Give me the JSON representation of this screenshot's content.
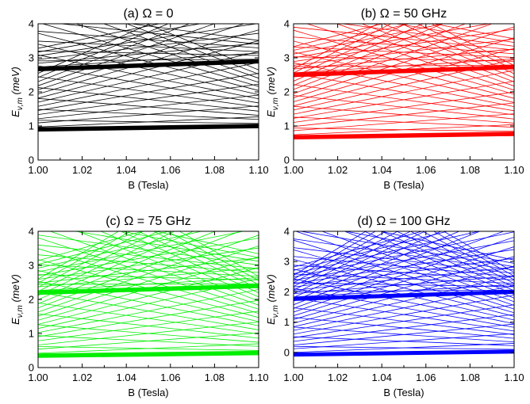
{
  "figure": {
    "background": "#ffffff"
  },
  "chart_data": [
    {
      "panel": "a",
      "type": "line",
      "title": "(a) Ω = 0",
      "xlabel": "B (Tesla)",
      "ylabel_main": "E",
      "ylabel_sub": "ν,m",
      "ylabel_unit": "(meV)",
      "xlim": [
        1.0,
        1.1
      ],
      "ylim": [
        0,
        4
      ],
      "xticks": [
        "1.00",
        "1.02",
        "1.04",
        "1.06",
        "1.08",
        "1.10"
      ],
      "yticks": [
        "0",
        "1",
        "2",
        "3",
        "4"
      ],
      "color": "#000000",
      "bands": [
        {
          "y_at_1.00": 0.85,
          "y_at_1.10": 0.95
        },
        {
          "y_at_1.00": 2.62,
          "y_at_1.10": 2.85
        }
      ],
      "fan_levels_from_first_band": 14,
      "fan_levels_from_second_band": 6
    },
    {
      "panel": "b",
      "type": "line",
      "title": "(b) Ω = 50 GHz",
      "xlabel": "B (Tesla)",
      "ylabel_main": "E",
      "ylabel_sub": "ν,m",
      "ylabel_unit": "(meV)",
      "xlim": [
        1.0,
        1.1
      ],
      "ylim": [
        0,
        4
      ],
      "xticks": [
        "1.00",
        "1.02",
        "1.04",
        "1.06",
        "1.08",
        "1.10"
      ],
      "yticks": [
        "0",
        "1",
        "2",
        "3",
        "4"
      ],
      "color": "#ff0000",
      "bands": [
        {
          "y_at_1.00": 0.62,
          "y_at_1.10": 0.72
        },
        {
          "y_at_1.00": 2.45,
          "y_at_1.10": 2.68
        }
      ],
      "fan_levels_from_first_band": 17,
      "fan_levels_from_second_band": 8
    },
    {
      "panel": "c",
      "type": "line",
      "title": "(c) Ω = 75 GHz",
      "xlabel": "B (Tesla)",
      "ylabel_main": "E",
      "ylabel_sub": "ν,m",
      "ylabel_unit": "(meV)",
      "xlim": [
        1.0,
        1.1
      ],
      "ylim": [
        0,
        4
      ],
      "xticks": [
        "1.00",
        "1.02",
        "1.04",
        "1.06",
        "1.08",
        "1.10"
      ],
      "yticks": [
        "0",
        "1",
        "2",
        "3",
        "4"
      ],
      "color": "#00ee00",
      "bands": [
        {
          "y_at_1.00": 0.3,
          "y_at_1.10": 0.38
        },
        {
          "y_at_1.00": 2.15,
          "y_at_1.10": 2.35
        }
      ],
      "fan_levels_from_first_band": 19,
      "fan_levels_from_second_band": 9
    },
    {
      "panel": "d",
      "type": "line",
      "title": "(d) Ω = 100 GHz",
      "xlabel": "B (Tesla)",
      "ylabel_main": "E",
      "ylabel_sub": "ν,m",
      "ylabel_unit": "(meV)",
      "xlim": [
        1.0,
        1.1
      ],
      "ylim": [
        -0.5,
        4
      ],
      "xticks": [
        "1.00",
        "1.02",
        "1.04",
        "1.06",
        "1.08",
        "1.10"
      ],
      "yticks": [
        "0",
        "1",
        "2",
        "3",
        "4"
      ],
      "color": "#0000ff",
      "bands": [
        {
          "y_at_1.00": -0.12,
          "y_at_1.10": -0.02
        },
        {
          "y_at_1.00": 1.72,
          "y_at_1.10": 1.95
        }
      ],
      "fan_levels_from_first_band": 22,
      "fan_levels_from_second_band": 10
    }
  ]
}
